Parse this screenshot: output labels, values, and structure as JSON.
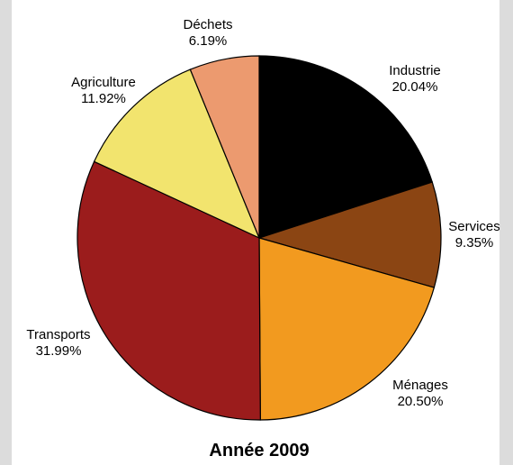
{
  "chart_data": {
    "type": "pie",
    "title": "Année 2009",
    "slices": [
      {
        "label": "Industrie",
        "percent_text": "20.04%",
        "value": 20.04,
        "color": "#000000"
      },
      {
        "label": "Services",
        "percent_text": "9.35%",
        "value": 9.35,
        "color": "#8b4513"
      },
      {
        "label": "Ménages",
        "percent_text": "20.50%",
        "value": 20.5,
        "color": "#f29a1f"
      },
      {
        "label": "Transports",
        "percent_text": "31.99%",
        "value": 31.99,
        "color": "#9b1c1c"
      },
      {
        "label": "Agriculture",
        "percent_text": "11.92%",
        "value": 11.92,
        "color": "#f2e46e"
      },
      {
        "label": "Déchets",
        "percent_text": "6.19%",
        "value": 6.19,
        "color": "#ec9a6f"
      }
    ]
  }
}
